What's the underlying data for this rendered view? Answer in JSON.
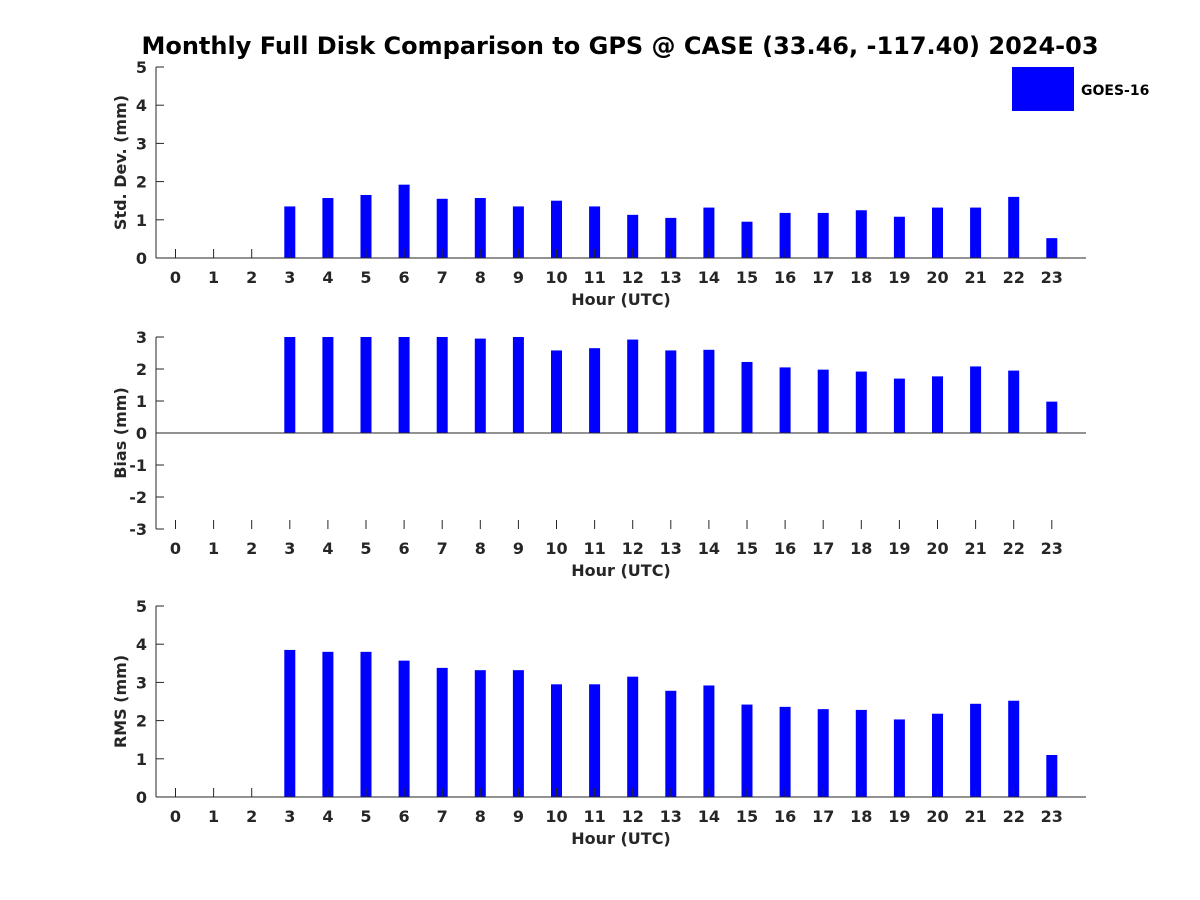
{
  "title": "Monthly Full Disk Comparison to GPS @ CASE (33.46, -117.40) 2024-03",
  "legend": {
    "label": "GOES-16",
    "color": "#0000ff"
  },
  "chart_data": [
    {
      "type": "bar",
      "name": "std",
      "ylabel": "Std. Dev. (mm)",
      "xlabel": "Hour (UTC)",
      "ylim": [
        0,
        5
      ],
      "yticks": [
        0,
        1,
        2,
        3,
        4,
        5
      ],
      "categories": [
        "0",
        "1",
        "2",
        "3",
        "4",
        "5",
        "6",
        "7",
        "8",
        "9",
        "10",
        "11",
        "12",
        "13",
        "14",
        "15",
        "16",
        "17",
        "18",
        "19",
        "20",
        "21",
        "22",
        "23"
      ],
      "values": [
        null,
        null,
        null,
        1.35,
        1.57,
        1.65,
        1.92,
        1.55,
        1.57,
        1.35,
        1.5,
        1.35,
        1.13,
        1.05,
        1.32,
        0.95,
        1.18,
        1.18,
        1.25,
        1.08,
        1.32,
        1.32,
        1.6,
        0.52
      ],
      "color": "#0000ff",
      "grid": false
    },
    {
      "type": "bar",
      "name": "bias",
      "ylabel": "Bias (mm)",
      "xlabel": "Hour (UTC)",
      "ylim": [
        -3,
        3
      ],
      "yticks": [
        -3,
        -2,
        -1,
        0,
        1,
        2,
        3
      ],
      "categories": [
        "0",
        "1",
        "2",
        "3",
        "4",
        "5",
        "6",
        "7",
        "8",
        "9",
        "10",
        "11",
        "12",
        "13",
        "14",
        "15",
        "16",
        "17",
        "18",
        "19",
        "20",
        "21",
        "22",
        "23"
      ],
      "values": [
        null,
        null,
        null,
        3.0,
        3.0,
        3.0,
        3.0,
        3.0,
        2.95,
        3.0,
        2.58,
        2.65,
        2.92,
        2.58,
        2.6,
        2.22,
        2.05,
        1.98,
        1.92,
        1.7,
        1.77,
        2.08,
        1.95,
        0.98
      ],
      "color": "#0000ff",
      "grid": false
    },
    {
      "type": "bar",
      "name": "rms",
      "ylabel": "RMS (mm)",
      "xlabel": "Hour (UTC)",
      "ylim": [
        0,
        5
      ],
      "yticks": [
        0,
        1,
        2,
        3,
        4,
        5
      ],
      "categories": [
        "0",
        "1",
        "2",
        "3",
        "4",
        "5",
        "6",
        "7",
        "8",
        "9",
        "10",
        "11",
        "12",
        "13",
        "14",
        "15",
        "16",
        "17",
        "18",
        "19",
        "20",
        "21",
        "22",
        "23"
      ],
      "values": [
        null,
        null,
        null,
        3.85,
        3.8,
        3.8,
        3.57,
        3.38,
        3.32,
        3.32,
        2.95,
        2.95,
        3.15,
        2.78,
        2.92,
        2.42,
        2.36,
        2.3,
        2.28,
        2.03,
        2.18,
        2.44,
        2.52,
        1.1
      ],
      "color": "#0000ff",
      "grid": false
    }
  ]
}
